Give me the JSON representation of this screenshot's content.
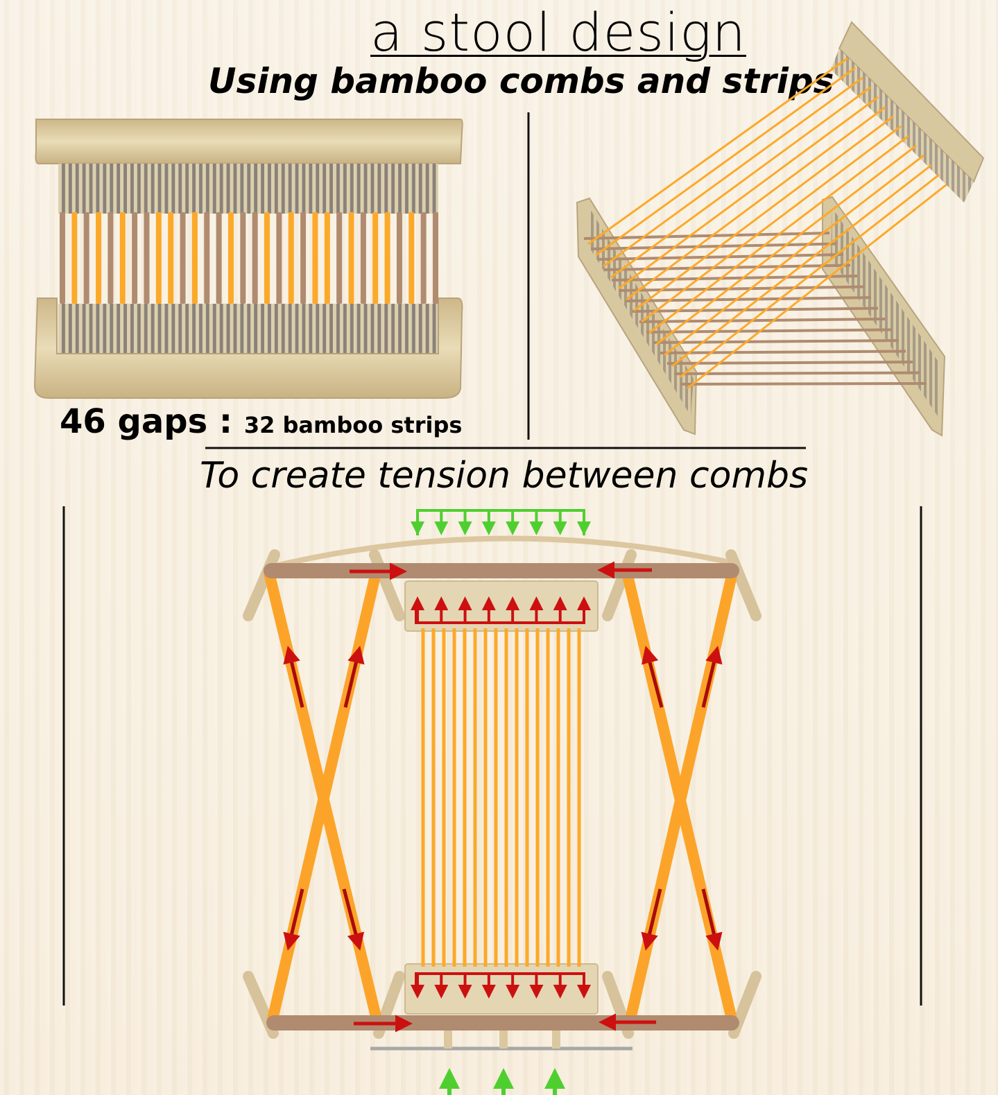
{
  "header": {
    "title": "a stool design",
    "subtitle": "Using bamboo combs and strips"
  },
  "top_left": {
    "gaps_label": "46 gaps :",
    "strips_label": "32 bamboo strips"
  },
  "bottom": {
    "caption": "To create tension between combs"
  },
  "colors": {
    "bamboo": "#d8c8a0",
    "strip_orange": "#fca92a",
    "strip_brown": "#b08b6f",
    "force_red": "#cc1010",
    "force_green": "#4fcf2f"
  }
}
